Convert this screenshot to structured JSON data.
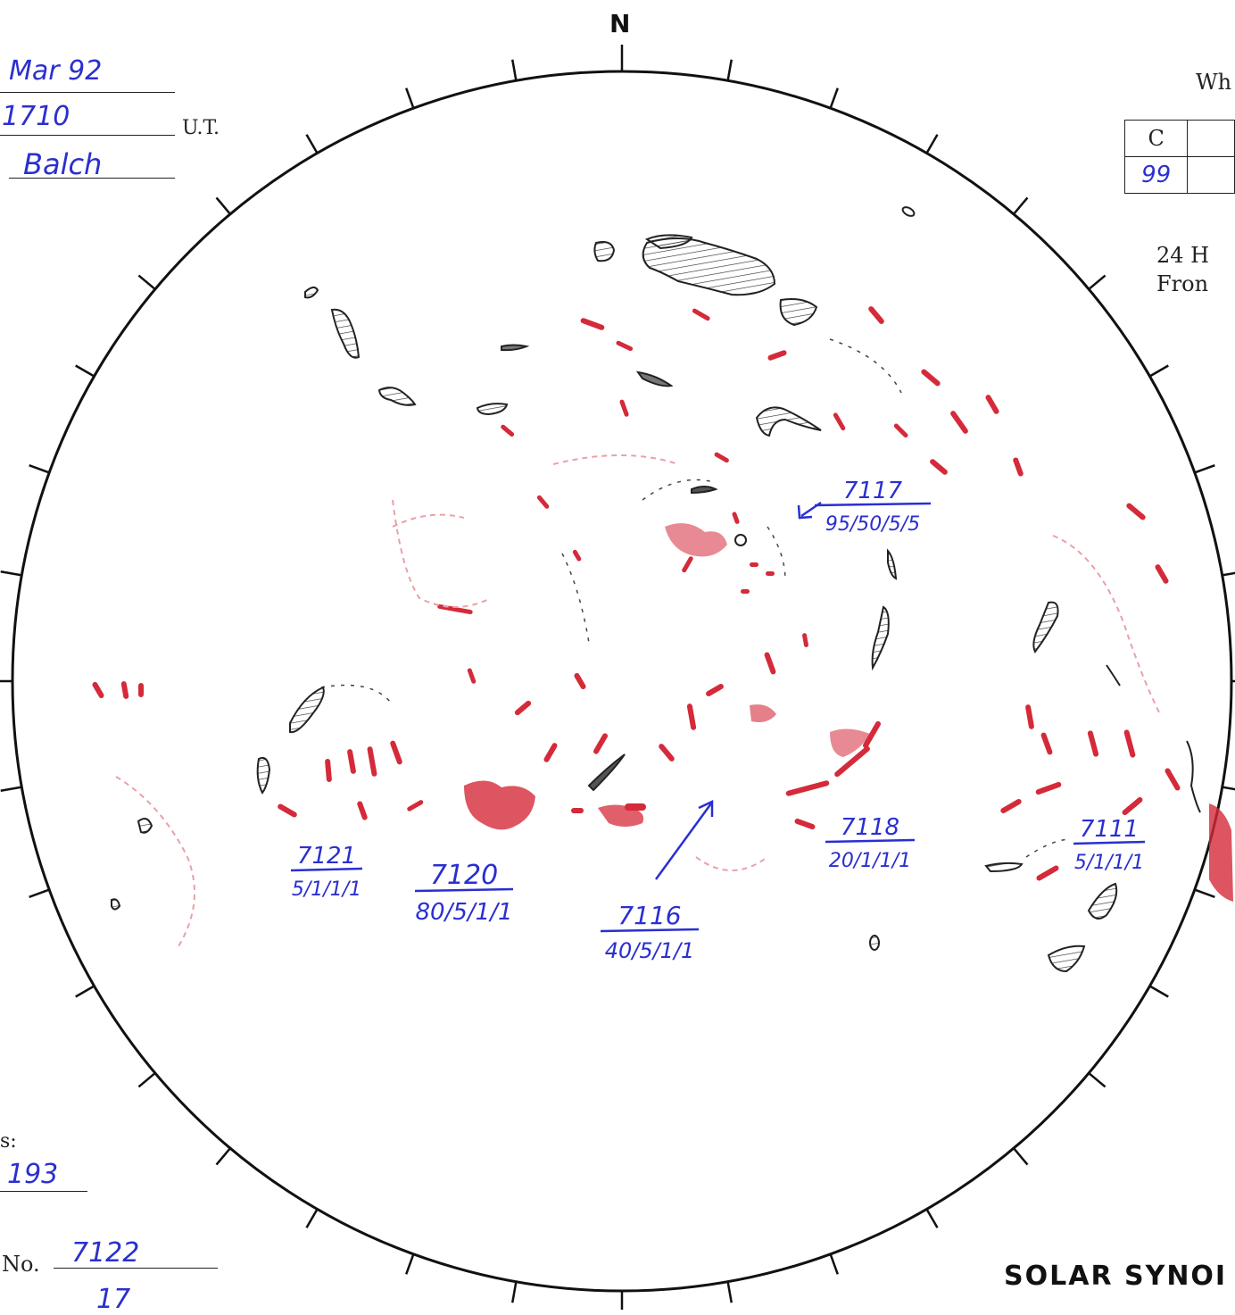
{
  "header": {
    "date": "Mar 92",
    "time": "1710",
    "time_unit": "U.T.",
    "observer": "Balch"
  },
  "compass_label": "N",
  "table_heading": "Wh",
  "table": {
    "col_header": "C",
    "col_value": "99"
  },
  "note": {
    "line1": "24 H",
    "line2": "Fron"
  },
  "regions": [
    {
      "number": "7117",
      "code": "95/50/5/5"
    },
    {
      "number": "7121",
      "code": "5/1/1/1"
    },
    {
      "number": "7120",
      "code": "80/5/1/1"
    },
    {
      "number": "7116",
      "code": "40/5/1/1"
    },
    {
      "number": "7118",
      "code": "20/1/1/1"
    },
    {
      "number": "7111",
      "code": "5/1/1/1"
    }
  ],
  "footer": {
    "label_suffix": "s:",
    "value_1": "193",
    "no_label": "No.",
    "no_value": "7122",
    "value_2": "17"
  },
  "title": "SOLAR SYNOI",
  "colors": {
    "ink_blue": "#2a2fd0",
    "plage_red": "#d42a3a",
    "outline": "#222222"
  }
}
